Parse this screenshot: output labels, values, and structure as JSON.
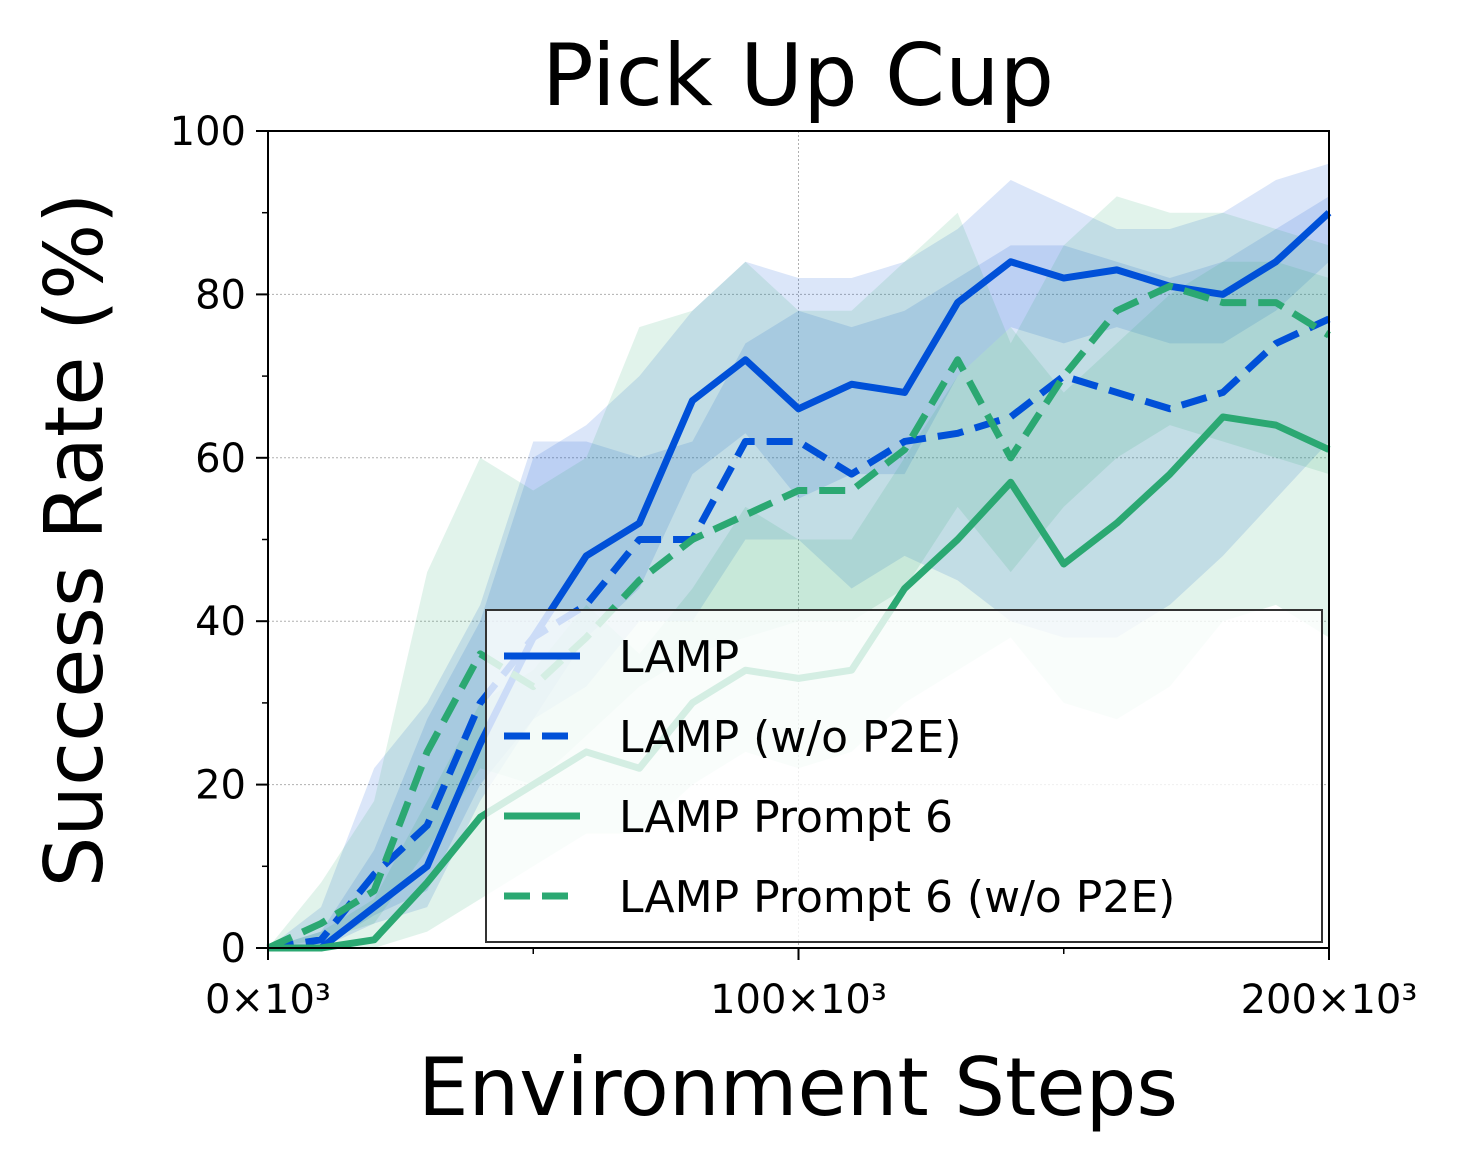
{
  "chart_data": {
    "type": "line",
    "title": "Pick Up Cup",
    "xlabel": "Environment Steps",
    "ylabel": "Success Rate (%)",
    "xlim": [
      0,
      200000
    ],
    "ylim": [
      0,
      100
    ],
    "x_ticks": [
      0,
      100000,
      200000
    ],
    "x_tick_labels": [
      "0×10³",
      "100×10³",
      "200×10³"
    ],
    "y_ticks": [
      0,
      20,
      40,
      60,
      80,
      100
    ],
    "y_tick_labels": [
      "0",
      "20",
      "40",
      "60",
      "80",
      "100"
    ],
    "grid": true,
    "legend_position": "lower-right",
    "x": [
      0,
      10000,
      20000,
      30000,
      40000,
      50000,
      60000,
      70000,
      80000,
      90000,
      100000,
      110000,
      120000,
      130000,
      140000,
      150000,
      160000,
      170000,
      180000,
      190000,
      200000
    ],
    "series": [
      {
        "name": "LAMP",
        "color": "#0050d8",
        "style": "solid",
        "values": [
          0,
          0,
          5,
          10,
          25,
          38,
          48,
          52,
          67,
          72,
          66,
          69,
          68,
          79,
          84,
          82,
          83,
          81,
          80,
          84,
          90
        ],
        "lower": [
          0,
          0,
          3,
          5,
          18,
          28,
          38,
          44,
          58,
          63,
          55,
          58,
          58,
          70,
          76,
          74,
          76,
          74,
          74,
          78,
          84
        ],
        "upper": [
          0,
          2,
          12,
          28,
          40,
          60,
          64,
          70,
          78,
          84,
          82,
          82,
          84,
          88,
          94,
          91,
          88,
          88,
          90,
          94,
          96
        ]
      },
      {
        "name": "LAMP (w/o P2E)",
        "color": "#0050d8",
        "style": "dashed",
        "values": [
          0,
          1,
          9,
          15,
          30,
          38,
          42,
          50,
          50,
          62,
          62,
          58,
          62,
          63,
          65,
          70,
          68,
          66,
          68,
          74,
          77
        ],
        "lower": [
          0,
          0,
          4,
          7,
          20,
          28,
          32,
          40,
          40,
          50,
          50,
          44,
          48,
          45,
          40,
          38,
          38,
          42,
          48,
          55,
          62
        ],
        "upper": [
          0,
          5,
          22,
          30,
          42,
          62,
          62,
          60,
          62,
          74,
          78,
          76,
          78,
          82,
          86,
          86,
          84,
          82,
          84,
          88,
          92
        ]
      },
      {
        "name": "LAMP Prompt 6",
        "color": "#2ba872",
        "style": "solid",
        "values": [
          0,
          0,
          1,
          8,
          16,
          20,
          24,
          22,
          30,
          34,
          33,
          34,
          44,
          50,
          57,
          47,
          52,
          58,
          65,
          64,
          61
        ],
        "lower": [
          0,
          0,
          0,
          2,
          6,
          10,
          14,
          14,
          20,
          24,
          22,
          24,
          30,
          34,
          38,
          30,
          28,
          32,
          40,
          42,
          38
        ],
        "upper": [
          0,
          2,
          6,
          18,
          30,
          34,
          42,
          36,
          44,
          54,
          50,
          50,
          60,
          70,
          76,
          68,
          74,
          80,
          84,
          84,
          82
        ]
      },
      {
        "name": "LAMP Prompt 6 (w/o P2E)",
        "color": "#2ba872",
        "style": "dashed",
        "values": [
          0,
          3,
          7,
          24,
          36,
          32,
          38,
          45,
          50,
          53,
          56,
          56,
          61,
          72,
          60,
          70,
          78,
          81,
          79,
          79,
          75
        ],
        "lower": [
          0,
          1,
          3,
          12,
          22,
          20,
          26,
          32,
          36,
          38,
          40,
          40,
          44,
          54,
          46,
          54,
          60,
          64,
          62,
          60,
          58
        ],
        "upper": [
          0,
          8,
          18,
          46,
          60,
          56,
          60,
          76,
          78,
          84,
          78,
          78,
          84,
          90,
          74,
          86,
          92,
          90,
          90,
          88,
          86
        ]
      }
    ]
  }
}
